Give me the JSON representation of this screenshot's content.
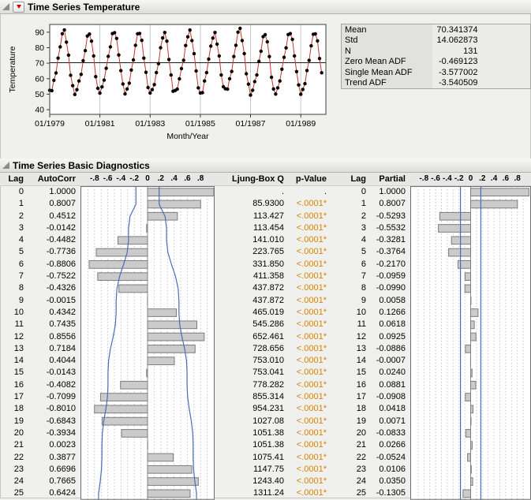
{
  "colors": {
    "page_bg": "#f0f0ee",
    "accent_red": "#d00000",
    "p_value_orange": "#d88400",
    "conf_blue": "#4a6db8",
    "bar_fill": "#cbcbcb",
    "bar_border": "#7d7d7d",
    "series_red": "#cc3328"
  },
  "outline1": {
    "title": "Time Series Temperature"
  },
  "outline2": {
    "title": "Time Series Basic Diagnostics"
  },
  "summary_stats": {
    "rows": [
      {
        "label": "Mean",
        "value": "70.341374"
      },
      {
        "label": "Std",
        "value": "14.062873"
      },
      {
        "label": "N",
        "value": "131"
      },
      {
        "label": "Zero Mean ADF",
        "value": "-0.469123"
      },
      {
        "label": "Single Mean ADF",
        "value": "-3.577002"
      },
      {
        "label": "Trend ADF",
        "value": "-3.540509"
      }
    ]
  },
  "chart_data": [
    {
      "type": "line",
      "name": "time-series-plot",
      "xlabel": "Month/Year",
      "ylabel": "Temperature",
      "y_ticks": [
        40,
        50,
        60,
        70,
        80,
        90
      ],
      "ylim": [
        37,
        95
      ],
      "x_tick_labels": [
        "01/1979",
        "01/1981",
        "01/1983",
        "01/1985",
        "01/1987",
        "01/1989"
      ],
      "x_tick_indices": [
        0,
        24,
        48,
        72,
        96,
        120
      ],
      "n_points": 131,
      "reference_line_y": 70.341374,
      "values": [
        52.5,
        52.3,
        59.0,
        63.7,
        73.3,
        80.5,
        89.0,
        91.5,
        83.6,
        75.2,
        62.2,
        55.5,
        49.8,
        52.9,
        58.5,
        62.8,
        71.6,
        78.1,
        87.5,
        88.8,
        84.2,
        74.7,
        61.3,
        53.8,
        50.7,
        54.7,
        59.1,
        66.7,
        74.4,
        80.5,
        89.1,
        89.7,
        86.0,
        75.3,
        65.2,
        56.6,
        50.2,
        53.4,
        57.1,
        65.6,
        72.1,
        81.5,
        89.0,
        89.2,
        84.7,
        73.3,
        64.1,
        54.3,
        50.8,
        52.9,
        56.2,
        63.9,
        69.7,
        80.0,
        86.3,
        89.8,
        84.2,
        72.4,
        62.4,
        51.9,
        52.4,
        53.3,
        59.9,
        66.5,
        71.9,
        81.4,
        87.0,
        91.4,
        84.6,
        76.1,
        65.0,
        54.1,
        50.8,
        51.0,
        58.5,
        63.9,
        72.6,
        81.0,
        86.2,
        89.8,
        82.3,
        74.7,
        62.4,
        54.8,
        53.5,
        53.3,
        60.0,
        64.7,
        74.3,
        81.5,
        90.0,
        92.5,
        84.6,
        76.2,
        63.2,
        56.5,
        49.4,
        52.5,
        58.1,
        62.4,
        71.2,
        77.7,
        87.1,
        88.4,
        83.8,
        74.3,
        60.9,
        53.4,
        50.1,
        54.1,
        58.5,
        66.1,
        73.8,
        79.9,
        88.5,
        89.1,
        85.4,
        74.7,
        64.6,
        56.0,
        49.9,
        53.1,
        56.8,
        65.3,
        71.8,
        81.2,
        88.7,
        88.9,
        84.4,
        73.0,
        63.8
      ]
    },
    {
      "type": "bar",
      "name": "autocorrelation-plot",
      "orientation": "horizontal",
      "n": 131,
      "xlim": [
        -0.95,
        0.95
      ],
      "axis_ticks": [
        -0.8,
        -0.6,
        -0.4,
        -0.2,
        0,
        0.2,
        0.4,
        0.6,
        0.8
      ],
      "axis_labels": [
        "-.8",
        "-.6",
        "-.4",
        "-.2",
        "0",
        ".2",
        ".4",
        ".6",
        ".8"
      ],
      "values": [
        1.0,
        0.8007,
        0.4512,
        -0.0142,
        -0.4482,
        -0.7736,
        -0.8806,
        -0.7522,
        -0.4326,
        -0.0015,
        0.4342,
        0.7435,
        0.8556,
        0.7184,
        0.4044,
        -0.0143,
        -0.4082,
        -0.7099,
        -0.801,
        -0.6843,
        -0.3934,
        0.0023,
        0.3877,
        0.6696,
        0.7665,
        0.6424
      ],
      "conf_bounds": "bartlett"
    },
    {
      "type": "bar",
      "name": "partial-autocorrelation-plot",
      "orientation": "horizontal",
      "xlim": [
        -0.95,
        0.95
      ],
      "axis_ticks": [
        -0.8,
        -0.6,
        -0.4,
        -0.2,
        0,
        0.2,
        0.4,
        0.6,
        0.8
      ],
      "axis_labels": [
        "-.8",
        "-.6",
        "-.4",
        "-.2",
        "0",
        ".2",
        ".4",
        ".6",
        ".8"
      ],
      "values": [
        1.0,
        0.8007,
        -0.5293,
        -0.5532,
        -0.3281,
        -0.3764,
        -0.217,
        -0.0959,
        -0.099,
        0.0058,
        0.1266,
        0.0618,
        0.0925,
        -0.0886,
        -0.0007,
        0.024,
        0.0881,
        -0.0908,
        0.0418,
        0.0071,
        -0.0833,
        0.0266,
        -0.0524,
        0.0106,
        0.035,
        -0.1305
      ],
      "conf_limit": 0.1747
    }
  ],
  "diagnostics": {
    "p_color": "#d88400",
    "headers": {
      "lag": "Lag",
      "autocorr": "AutoCorr",
      "ljung": "Ljung-Box Q",
      "pvalue": "p-Value",
      "lag2": "Lag",
      "partial": "Partial"
    },
    "rows": [
      {
        "lag": 0,
        "autocorr": "1.0000",
        "ljung": ".",
        "p": ".",
        "partial": "1.0000"
      },
      {
        "lag": 1,
        "autocorr": "0.8007",
        "ljung": "85.9300",
        "p": "<.0001*",
        "partial": "0.8007"
      },
      {
        "lag": 2,
        "autocorr": "0.4512",
        "ljung": "113.427",
        "p": "<.0001*",
        "partial": "-0.5293"
      },
      {
        "lag": 3,
        "autocorr": "-0.0142",
        "ljung": "113.454",
        "p": "<.0001*",
        "partial": "-0.5532"
      },
      {
        "lag": 4,
        "autocorr": "-0.4482",
        "ljung": "141.010",
        "p": "<.0001*",
        "partial": "-0.3281"
      },
      {
        "lag": 5,
        "autocorr": "-0.7736",
        "ljung": "223.765",
        "p": "<.0001*",
        "partial": "-0.3764"
      },
      {
        "lag": 6,
        "autocorr": "-0.8806",
        "ljung": "331.850",
        "p": "<.0001*",
        "partial": "-0.2170"
      },
      {
        "lag": 7,
        "autocorr": "-0.7522",
        "ljung": "411.358",
        "p": "<.0001*",
        "partial": "-0.0959"
      },
      {
        "lag": 8,
        "autocorr": "-0.4326",
        "ljung": "437.872",
        "p": "<.0001*",
        "partial": "-0.0990"
      },
      {
        "lag": 9,
        "autocorr": "-0.0015",
        "ljung": "437.872",
        "p": "<.0001*",
        "partial": "0.0058"
      },
      {
        "lag": 10,
        "autocorr": "0.4342",
        "ljung": "465.019",
        "p": "<.0001*",
        "partial": "0.1266"
      },
      {
        "lag": 11,
        "autocorr": "0.7435",
        "ljung": "545.286",
        "p": "<.0001*",
        "partial": "0.0618"
      },
      {
        "lag": 12,
        "autocorr": "0.8556",
        "ljung": "652.461",
        "p": "<.0001*",
        "partial": "0.0925"
      },
      {
        "lag": 13,
        "autocorr": "0.7184",
        "ljung": "728.656",
        "p": "<.0001*",
        "partial": "-0.0886"
      },
      {
        "lag": 14,
        "autocorr": "0.4044",
        "ljung": "753.010",
        "p": "<.0001*",
        "partial": "-0.0007"
      },
      {
        "lag": 15,
        "autocorr": "-0.0143",
        "ljung": "753.041",
        "p": "<.0001*",
        "partial": "0.0240"
      },
      {
        "lag": 16,
        "autocorr": "-0.4082",
        "ljung": "778.282",
        "p": "<.0001*",
        "partial": "0.0881"
      },
      {
        "lag": 17,
        "autocorr": "-0.7099",
        "ljung": "855.314",
        "p": "<.0001*",
        "partial": "-0.0908"
      },
      {
        "lag": 18,
        "autocorr": "-0.8010",
        "ljung": "954.231",
        "p": "<.0001*",
        "partial": "0.0418"
      },
      {
        "lag": 19,
        "autocorr": "-0.6843",
        "ljung": "1027.08",
        "p": "<.0001*",
        "partial": "0.0071"
      },
      {
        "lag": 20,
        "autocorr": "-0.3934",
        "ljung": "1051.38",
        "p": "<.0001*",
        "partial": "-0.0833"
      },
      {
        "lag": 21,
        "autocorr": "0.0023",
        "ljung": "1051.38",
        "p": "<.0001*",
        "partial": "0.0266"
      },
      {
        "lag": 22,
        "autocorr": "0.3877",
        "ljung": "1075.41",
        "p": "<.0001*",
        "partial": "-0.0524"
      },
      {
        "lag": 23,
        "autocorr": "0.6696",
        "ljung": "1147.75",
        "p": "<.0001*",
        "partial": "0.0106"
      },
      {
        "lag": 24,
        "autocorr": "0.7665",
        "ljung": "1243.40",
        "p": "<.0001*",
        "partial": "0.0350"
      },
      {
        "lag": 25,
        "autocorr": "0.6424",
        "ljung": "1311.24",
        "p": "<.0001*",
        "partial": "-0.1305"
      }
    ]
  }
}
